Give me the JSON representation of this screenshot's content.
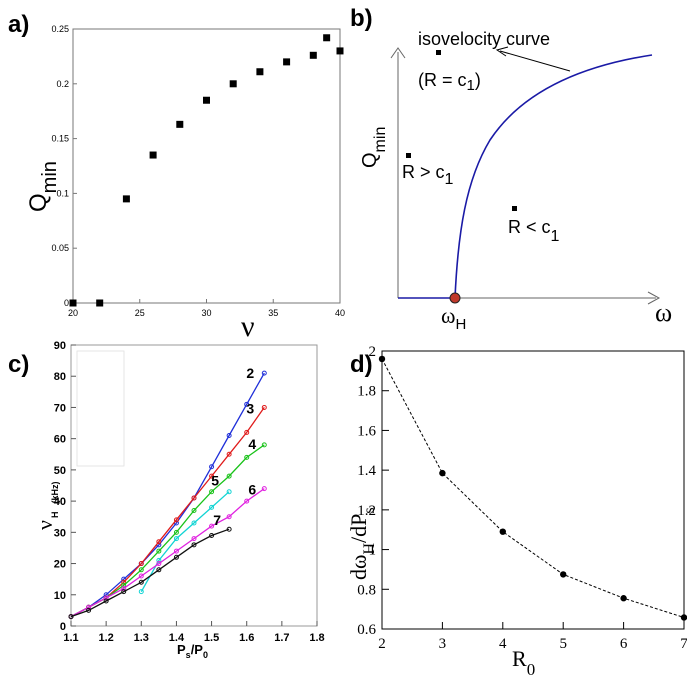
{
  "panels": {
    "a": {
      "letter": "a)"
    },
    "b": {
      "letter": "b)"
    },
    "c": {
      "letter": "c)"
    },
    "d": {
      "letter": "d)"
    }
  },
  "chart_data": [
    {
      "id": "a",
      "type": "scatter",
      "xlim": [
        20,
        40
      ],
      "ylim": [
        0,
        0.25
      ],
      "xticks": [
        20,
        25,
        30,
        35,
        40
      ],
      "yticks": [
        0,
        0.05,
        0.1,
        0.15,
        0.2,
        0.25
      ],
      "xlabel": "ν",
      "ylabel_main": "Q",
      "ylabel_sub": "min",
      "points": [
        {
          "x": 20,
          "y": 0.0
        },
        {
          "x": 22,
          "y": 0.0
        },
        {
          "x": 24,
          "y": 0.095
        },
        {
          "x": 26,
          "y": 0.135
        },
        {
          "x": 28,
          "y": 0.163
        },
        {
          "x": 30,
          "y": 0.185
        },
        {
          "x": 32,
          "y": 0.2
        },
        {
          "x": 34,
          "y": 0.211
        },
        {
          "x": 36,
          "y": 0.22
        },
        {
          "x": 38,
          "y": 0.226
        },
        {
          "x": 39,
          "y": 0.242
        },
        {
          "x": 40,
          "y": 0.23
        }
      ]
    },
    {
      "id": "b",
      "type": "line",
      "schematic": true,
      "xlabel": "ω",
      "ylabel_main": "Q",
      "ylabel_sub": "min",
      "marker_label_main": "ω",
      "marker_label_sub": "H",
      "curve_label": "isovelocity curve",
      "curve_equation_main": "(R = c",
      "curve_equation_sub": "1",
      "curve_equation_close": ")",
      "region_above_main": "R > c",
      "region_above_sub": "1",
      "region_below_main": "R < c",
      "region_below_sub": "1",
      "curve_color": "#1a1aa6",
      "marker_color": "#c0392b"
    },
    {
      "id": "c",
      "type": "line",
      "xlim": [
        1.1,
        1.8
      ],
      "ylim": [
        0,
        90
      ],
      "xticks": [
        1.1,
        1.2,
        1.3,
        1.4,
        1.5,
        1.6,
        1.7,
        1.8
      ],
      "yticks": [
        0,
        10,
        20,
        30,
        40,
        50,
        60,
        70,
        80,
        90
      ],
      "xlabel_main": "P",
      "xlabel_sub1": "s",
      "xlabel_mid": "/P",
      "xlabel_sub2": "0",
      "ylabel_main": "ν",
      "ylabel_sub": "H",
      "ylabel_unit": "(kHz)",
      "series": [
        {
          "name": "2",
          "color": "#1f2fd9",
          "x": [
            1.1,
            1.15,
            1.2,
            1.25,
            1.3,
            1.35,
            1.4,
            1.45,
            1.5,
            1.55,
            1.6,
            1.65
          ],
          "y": [
            3,
            6,
            10,
            15,
            20,
            26,
            33,
            41,
            51,
            61,
            71,
            81
          ]
        },
        {
          "name": "3",
          "color": "#e01b1b",
          "x": [
            1.1,
            1.15,
            1.2,
            1.25,
            1.3,
            1.35,
            1.4,
            1.45,
            1.5,
            1.55,
            1.6,
            1.65
          ],
          "y": [
            3,
            6,
            9,
            14,
            20,
            27,
            34,
            41,
            48,
            55,
            62,
            70
          ]
        },
        {
          "name": "4",
          "color": "#19c219",
          "x": [
            1.1,
            1.15,
            1.2,
            1.25,
            1.3,
            1.35,
            1.4,
            1.45,
            1.5,
            1.55,
            1.6,
            1.65
          ],
          "y": [
            3,
            6,
            9,
            13,
            18,
            24,
            30,
            37,
            43,
            48,
            54,
            58
          ]
        },
        {
          "name": "5",
          "color": "#12d4d4",
          "x": [
            1.3,
            1.35,
            1.4,
            1.45,
            1.5,
            1.55
          ],
          "y": [
            11,
            21,
            28,
            33,
            38,
            43
          ]
        },
        {
          "name": "6",
          "color": "#e022e0",
          "x": [
            1.1,
            1.15,
            1.2,
            1.25,
            1.3,
            1.35,
            1.4,
            1.45,
            1.5,
            1.55,
            1.6,
            1.65
          ],
          "y": [
            3,
            6,
            9,
            12,
            16,
            20,
            24,
            28,
            32,
            35,
            40,
            44
          ]
        },
        {
          "name": "7",
          "color": "#111111",
          "x": [
            1.1,
            1.15,
            1.2,
            1.25,
            1.3,
            1.35,
            1.4,
            1.45,
            1.5,
            1.55
          ],
          "y": [
            3,
            5,
            8,
            11,
            14,
            18,
            22,
            26,
            29,
            31
          ]
        }
      ]
    },
    {
      "id": "d",
      "type": "line",
      "xlim": [
        2,
        7
      ],
      "ylim": [
        0.6,
        2
      ],
      "xticks": [
        2,
        3,
        4,
        5,
        6,
        7
      ],
      "yticks": [
        0.6,
        0.8,
        1,
        1.2,
        1.4,
        1.6,
        1.8,
        2
      ],
      "xlabel_main": "R",
      "xlabel_sub": "0",
      "ylabel_a": "dω",
      "ylabel_b": "H",
      "ylabel_c": "/dP",
      "ylabel_d": "s",
      "points": [
        {
          "x": 2,
          "y": 1.96
        },
        {
          "x": 3,
          "y": 1.385
        },
        {
          "x": 4,
          "y": 1.09
        },
        {
          "x": 5,
          "y": 0.875
        },
        {
          "x": 6,
          "y": 0.755
        },
        {
          "x": 7,
          "y": 0.658
        }
      ]
    }
  ]
}
